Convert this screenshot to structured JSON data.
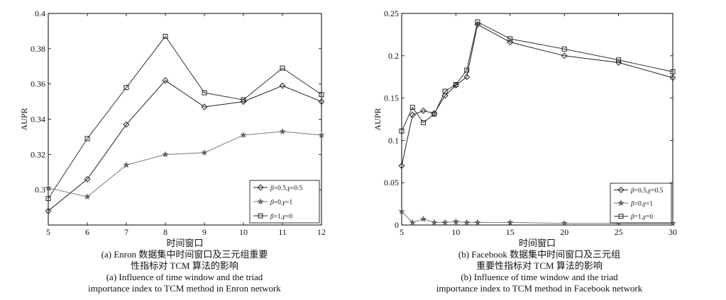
{
  "chart_data": [
    {
      "type": "line",
      "xlabel": "时间窗口",
      "ylabel": "AUPR",
      "xlim": [
        5,
        12
      ],
      "ylim": [
        0.28,
        0.4
      ],
      "xticks": [
        "5",
        "6",
        "7",
        "8",
        "9",
        "10",
        "11",
        "12"
      ],
      "yticks": [
        "0.3",
        "0.32",
        "0.34",
        "0.36",
        "0.38",
        "0.4"
      ],
      "grid": false,
      "legend_position": "bottom-right",
      "x": [
        5,
        6,
        7,
        8,
        9,
        10,
        11,
        12
      ],
      "series": [
        {
          "name": "β=0.5,γ=0.5",
          "marker": "diamond",
          "values": [
            0.288,
            0.306,
            0.337,
            0.362,
            0.347,
            0.35,
            0.359,
            0.35
          ]
        },
        {
          "name": "β=0,γ=1",
          "marker": "star",
          "values": [
            0.301,
            0.296,
            0.314,
            0.32,
            0.321,
            0.331,
            0.333,
            0.331
          ]
        },
        {
          "name": "β=1,γ=0",
          "marker": "square",
          "values": [
            0.295,
            0.329,
            0.358,
            0.387,
            0.355,
            0.351,
            0.369,
            0.354
          ]
        }
      ],
      "caption_cn": [
        "(a) Enron 数据集中时间窗口及三元组重要",
        "性指标对 TCM 算法的影响"
      ],
      "caption_en": [
        "(a) Influence of time window and the triad",
        "importance index to TCM method in Enron network"
      ]
    },
    {
      "type": "line",
      "xlabel": "时间窗口",
      "ylabel": "AUPR",
      "xlim": [
        5,
        30
      ],
      "ylim": [
        0,
        0.25
      ],
      "xticks": [
        "5",
        "10",
        "15",
        "20",
        "25",
        "30"
      ],
      "yticks": [
        "0",
        "0.05",
        "0.1",
        "0.15",
        "0.2",
        "0.25"
      ],
      "grid": false,
      "legend_position": "bottom-right",
      "x": [
        5,
        6,
        7,
        8,
        9,
        10,
        11,
        12,
        15,
        20,
        25,
        30
      ],
      "series": [
        {
          "name": "β=0.5,γ=0.5",
          "marker": "diamond",
          "values": [
            0.07,
            0.13,
            0.135,
            0.132,
            0.153,
            0.165,
            0.175,
            0.237,
            0.216,
            0.2,
            0.192,
            0.174
          ]
        },
        {
          "name": "β=0,γ=1",
          "marker": "star",
          "values": [
            0.016,
            0.003,
            0.007,
            0.003,
            0.003,
            0.004,
            0.003,
            0.003,
            0.003,
            0.002,
            0.002,
            0.002
          ]
        },
        {
          "name": "β=1,γ=0",
          "marker": "square",
          "values": [
            0.111,
            0.139,
            0.121,
            0.131,
            0.158,
            0.166,
            0.183,
            0.24,
            0.22,
            0.208,
            0.195,
            0.181
          ]
        }
      ],
      "caption_cn": [
        "(b) Facebook 数据集中时间窗口及三元组",
        "重要性指标对 TCM 算法的影响"
      ],
      "caption_en": [
        "(b) Influence of time window and the triad",
        "importance index to TCM method in Facebook network"
      ]
    }
  ]
}
